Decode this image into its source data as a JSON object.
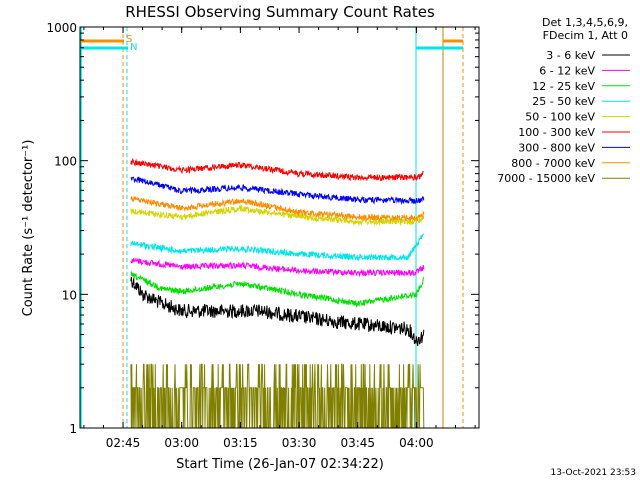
{
  "chart_data": {
    "type": "line",
    "title": "RHESSI Observing Summary Count Rates",
    "xlabel": "Start Time (26-Jan-07 02:34:22)",
    "ylabel": "Count Rate (s⁻¹ detector⁻¹)",
    "yscale": "log",
    "ylim": [
      1,
      1000
    ],
    "xlim": [
      "02:34",
      "04:16"
    ],
    "x_ticks": [
      "02:45",
      "03:00",
      "03:15",
      "03:30",
      "03:45",
      "04:00"
    ],
    "y_ticks": [
      "1",
      "10",
      "100",
      "1000"
    ],
    "legend_header": [
      "Det 1,3,4,5,6,9,",
      "FDecim 1, Att 0"
    ],
    "legend_position": "right",
    "timestamp": "13-Oct-2021 23:53",
    "markers": [
      {
        "label": "S",
        "time": "02:45",
        "color": "#ff8c00"
      },
      {
        "label": "N",
        "time": "02:46",
        "color": "#00e5e5"
      }
    ],
    "series": [
      {
        "name": "3 - 6 keV",
        "color": "#000000",
        "x": [
          "02:47",
          "02:50",
          "02:55",
          "03:00",
          "03:10",
          "03:20",
          "03:30",
          "03:40",
          "03:50",
          "03:58",
          "04:00",
          "04:02"
        ],
        "y": [
          13,
          10,
          8.5,
          7.5,
          7.5,
          7.5,
          6.8,
          6.2,
          5.8,
          5.5,
          4.5,
          5
        ]
      },
      {
        "name": "6 - 12 keV",
        "color": "#ff00ff",
        "x": [
          "02:47",
          "03:00",
          "03:15",
          "03:30",
          "03:45",
          "04:00",
          "04:02"
        ],
        "y": [
          18,
          16,
          16.5,
          15,
          14.5,
          14.5,
          16
        ]
      },
      {
        "name": "12 - 25 keV",
        "color": "#00e000",
        "x": [
          "02:47",
          "02:55",
          "03:00",
          "03:15",
          "03:30",
          "03:45",
          "04:00",
          "04:02"
        ],
        "y": [
          14,
          11,
          10.5,
          12,
          10,
          8.5,
          10,
          13
        ]
      },
      {
        "name": "25 - 50 keV",
        "color": "#00e5e5",
        "x": [
          "02:47",
          "03:00",
          "03:15",
          "03:30",
          "03:45",
          "03:58",
          "04:02"
        ],
        "y": [
          24,
          21,
          22,
          20,
          19,
          19,
          28
        ]
      },
      {
        "name": "50 - 100 keV",
        "color": "#d4d400",
        "x": [
          "02:47",
          "03:00",
          "03:15",
          "03:30",
          "03:45",
          "04:00",
          "04:02"
        ],
        "y": [
          42,
          38,
          44,
          38,
          35,
          35,
          38
        ]
      },
      {
        "name": "100 - 300 keV",
        "color": "#ff0000",
        "x": [
          "02:47",
          "03:00",
          "03:15",
          "03:30",
          "03:45",
          "04:00",
          "04:02"
        ],
        "y": [
          98,
          85,
          93,
          80,
          75,
          75,
          80
        ]
      },
      {
        "name": "300 - 800 keV",
        "color": "#0000ff",
        "x": [
          "02:47",
          "03:00",
          "03:15",
          "03:30",
          "03:45",
          "04:00",
          "04:02"
        ],
        "y": [
          74,
          59,
          63,
          56,
          51,
          50,
          51
        ]
      },
      {
        "name": "800 - 7000 keV",
        "color": "#ff8c00",
        "x": [
          "02:47",
          "03:00",
          "03:15",
          "03:30",
          "03:45",
          "04:00",
          "04:02"
        ],
        "y": [
          52,
          44,
          50,
          41,
          38,
          37,
          40
        ]
      },
      {
        "name": "7000 - 15000 keV",
        "color": "#808000",
        "x": [
          "02:47",
          "03:00",
          "03:15",
          "03:30",
          "03:45",
          "04:00",
          "04:02"
        ],
        "y": [
          2,
          2,
          2,
          2,
          2,
          2,
          2
        ]
      }
    ],
    "grid": false
  }
}
